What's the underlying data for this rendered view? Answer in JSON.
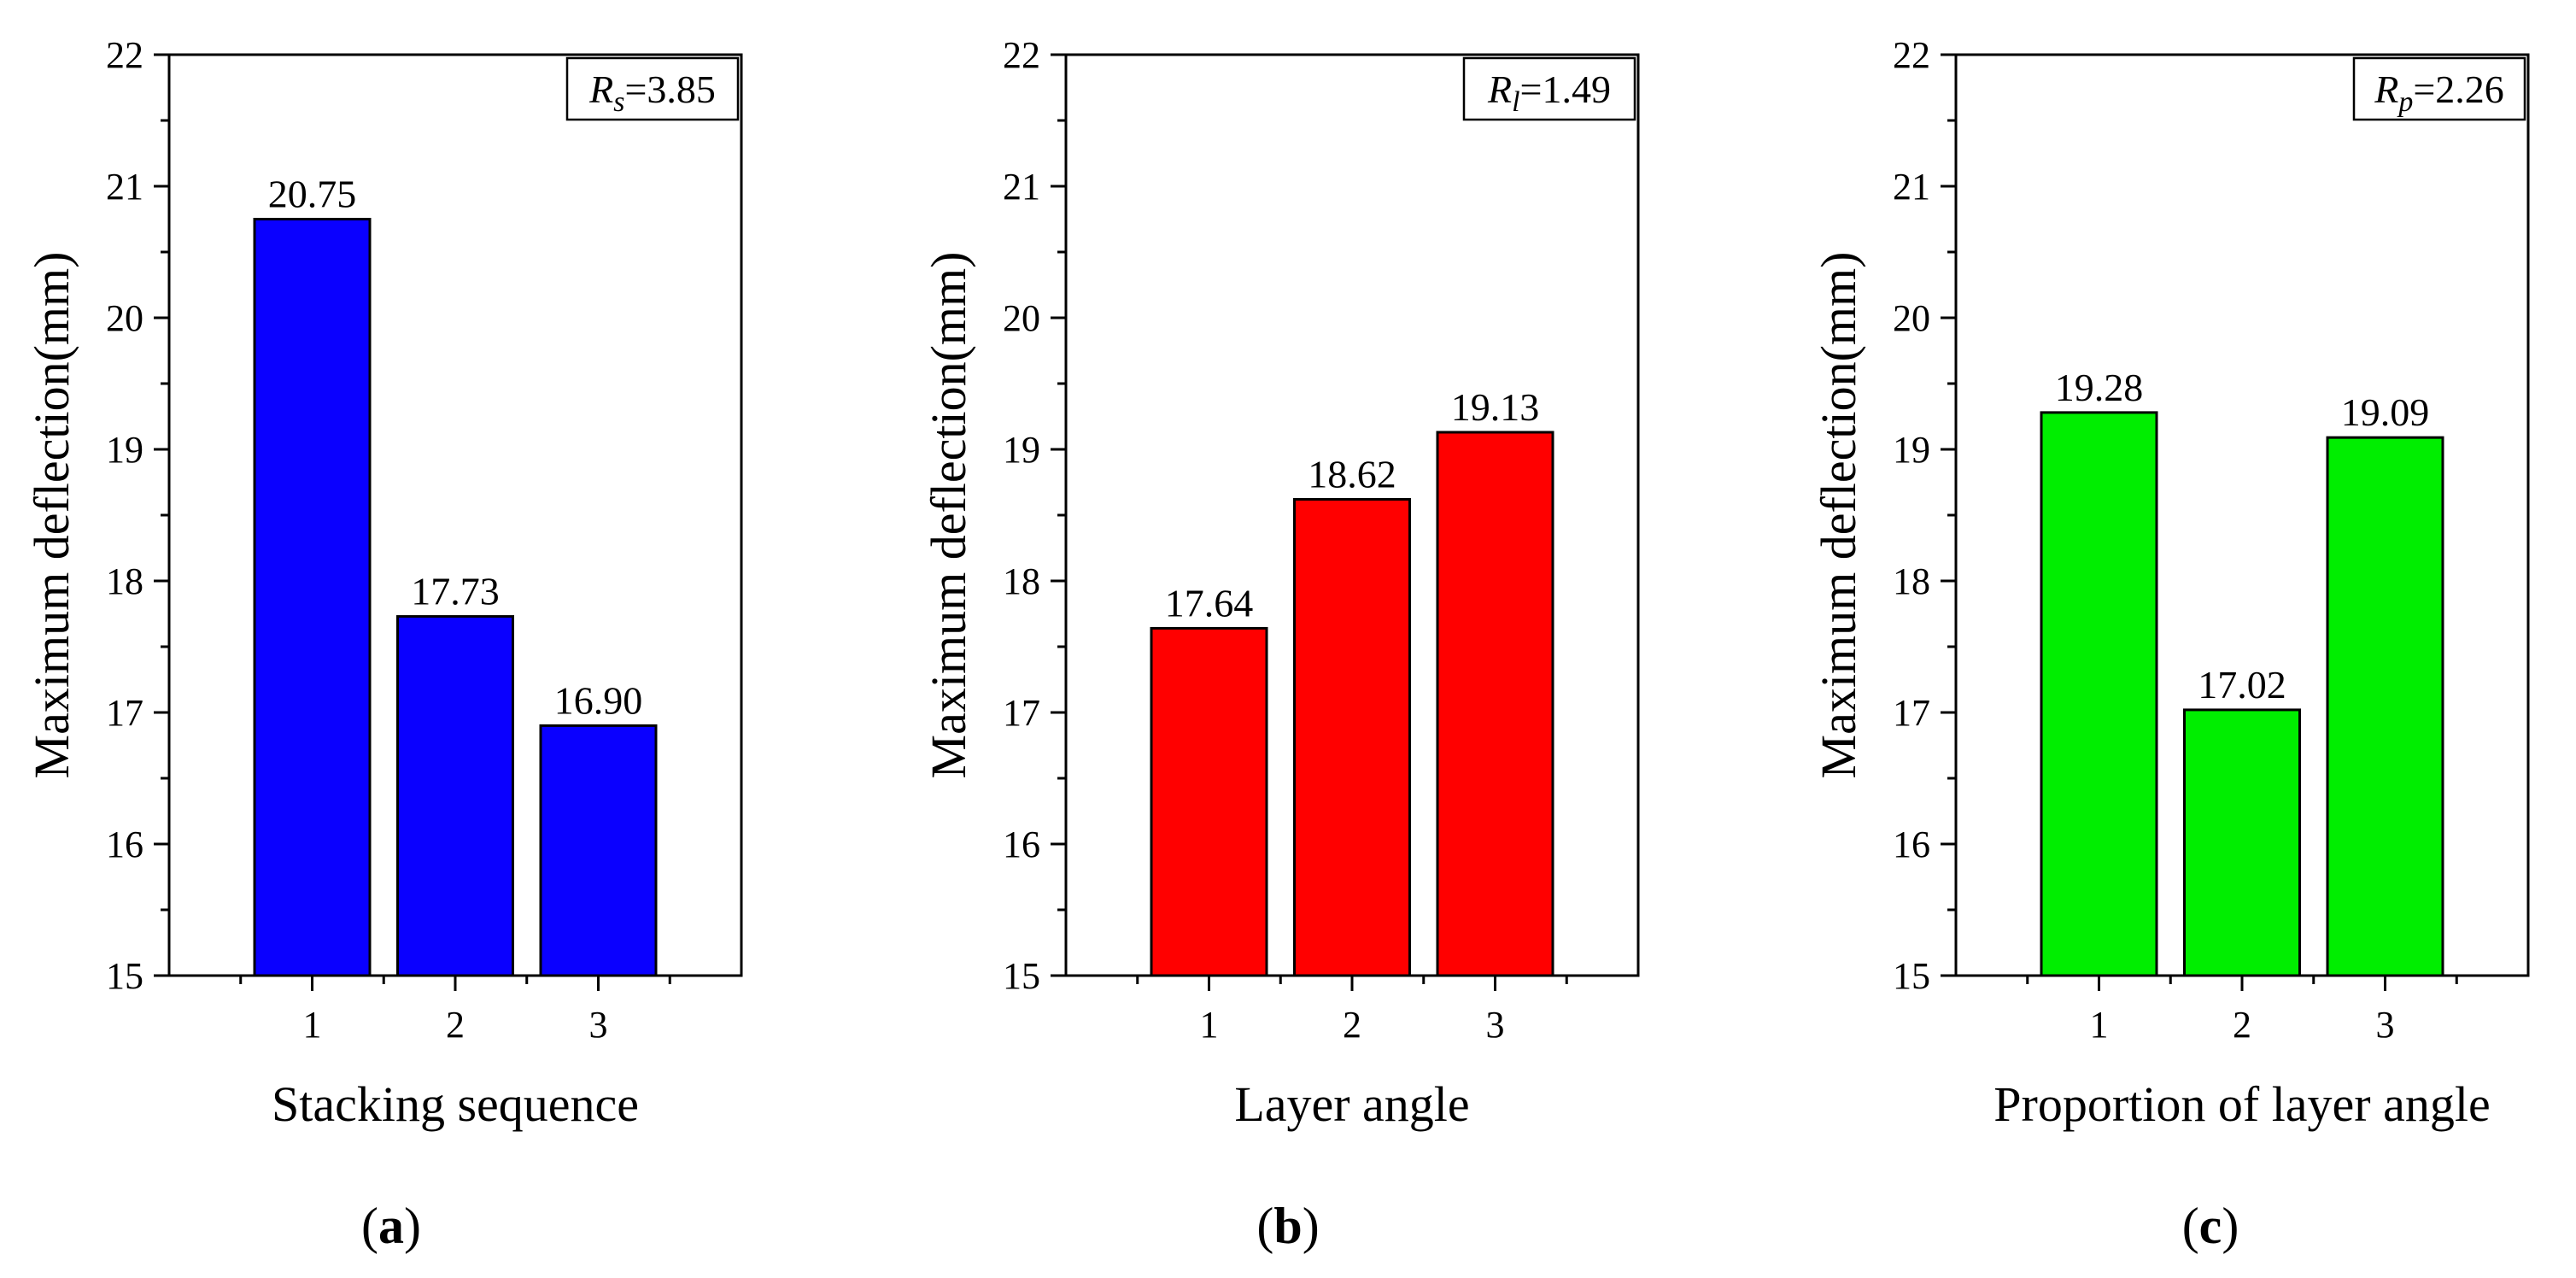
{
  "figure": {
    "panel_labels": [
      {
        "open": "(",
        "letter": "a",
        "close": ")"
      },
      {
        "open": "(",
        "letter": "b",
        "close": ")"
      },
      {
        "open": "(",
        "letter": "c",
        "close": ")"
      }
    ]
  },
  "chart_data": [
    {
      "type": "bar",
      "panel": "a",
      "title": "",
      "xlabel": "Stacking sequence",
      "ylabel": "Maximum deflection(mm)",
      "categories": [
        "1",
        "2",
        "3"
      ],
      "values": [
        20.75,
        17.73,
        16.9
      ],
      "value_labels": [
        "20.75",
        "17.73",
        "16.90"
      ],
      "ylim": [
        15,
        22
      ],
      "yticks": [
        15,
        16,
        17,
        18,
        19,
        20,
        21,
        22
      ],
      "color": "#0a00ff",
      "annotation": {
        "symbol": "R",
        "subscript": "s",
        "text": "=3.85",
        "value": 3.85,
        "position": "top-right"
      },
      "grid": false
    },
    {
      "type": "bar",
      "panel": "b",
      "title": "",
      "xlabel": "Layer angle",
      "ylabel": "Maximum deflection(mm)",
      "categories": [
        "1",
        "2",
        "3"
      ],
      "values": [
        17.64,
        18.62,
        19.13
      ],
      "value_labels": [
        "17.64",
        "18.62",
        "19.13"
      ],
      "ylim": [
        15,
        22
      ],
      "yticks": [
        15,
        16,
        17,
        18,
        19,
        20,
        21,
        22
      ],
      "color": "#ff0000",
      "annotation": {
        "symbol": "R",
        "subscript": "l",
        "text": "=1.49",
        "value": 1.49,
        "position": "top-right"
      },
      "grid": false
    },
    {
      "type": "bar",
      "panel": "c",
      "title": "",
      "xlabel": "Proportion of layer angle",
      "ylabel": "Maximum deflection(mm)",
      "categories": [
        "1",
        "2",
        "3"
      ],
      "values": [
        19.28,
        17.02,
        19.09
      ],
      "value_labels": [
        "19.28",
        "17.02",
        "19.09"
      ],
      "ylim": [
        15,
        22
      ],
      "yticks": [
        15,
        16,
        17,
        18,
        19,
        20,
        21,
        22
      ],
      "color": "#00ee00",
      "annotation": {
        "symbol": "R",
        "subscript": "p",
        "text": "=2.26",
        "value": 2.26,
        "position": "top-right"
      },
      "grid": false
    }
  ]
}
